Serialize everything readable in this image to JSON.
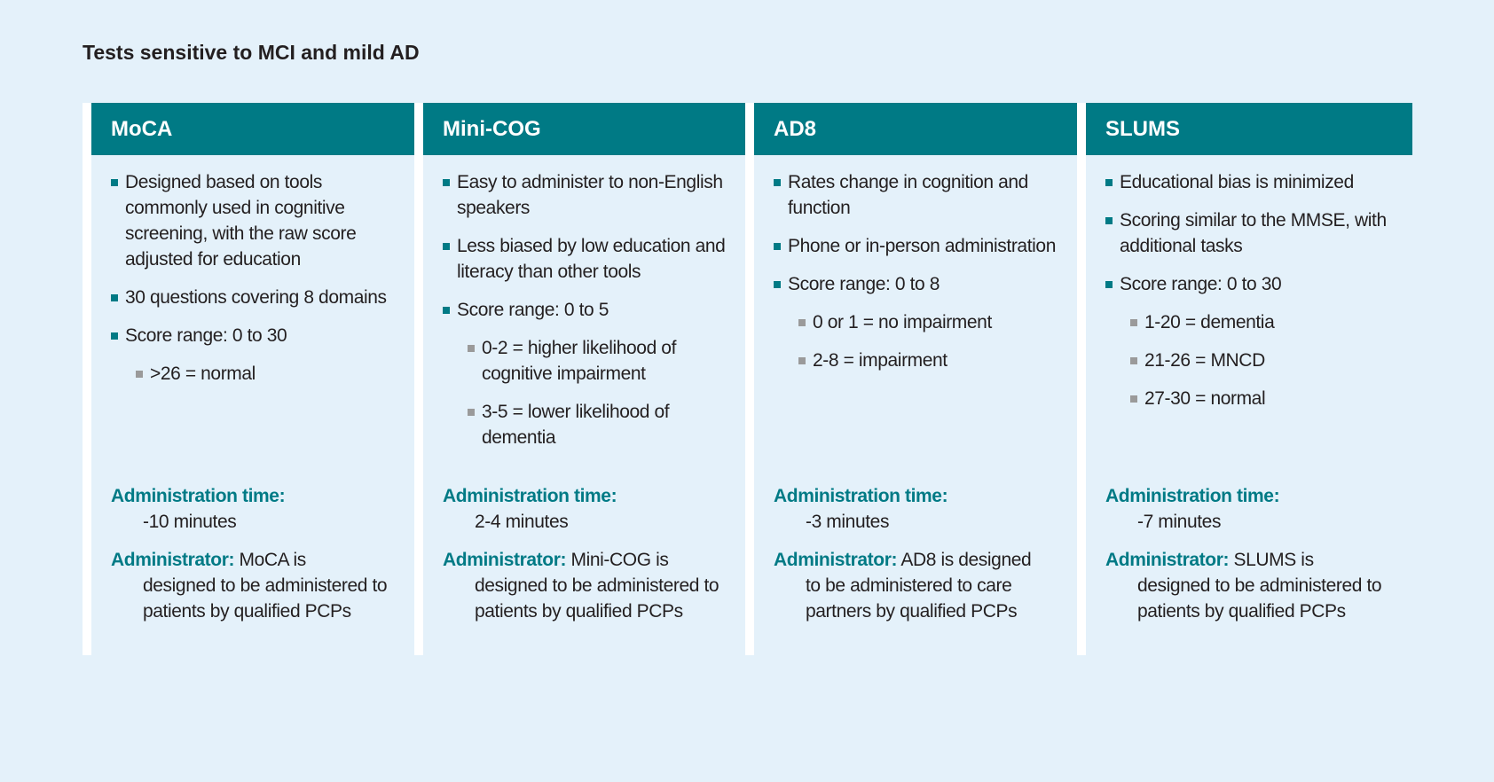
{
  "title": "Tests sensitive to MCI and mild AD",
  "labels": {
    "time": "Administration time:",
    "administrator": "Administrator:"
  },
  "columns": [
    {
      "name": "MoCA",
      "bullets": [
        {
          "text": "Designed based on tools commonly used in cognitive screening, with the raw score adjusted for education",
          "sub": false
        },
        {
          "text": "30 questions covering 8 domains",
          "sub": false
        },
        {
          "text": "Score range: 0 to 30",
          "sub": false
        },
        {
          "text": ">26 = normal",
          "sub": true
        }
      ],
      "time": "-10 minutes",
      "admin_first": "MoCA is",
      "admin_rest": "designed to be administered to patients by qualified PCPs"
    },
    {
      "name": "Mini-COG",
      "bullets": [
        {
          "text": "Easy to administer to non-English speakers",
          "sub": false
        },
        {
          "text": "Less biased by low education and literacy than other tools",
          "sub": false
        },
        {
          "text": "Score range: 0 to 5",
          "sub": false
        },
        {
          "text": "0-2 = higher likelihood of cognitive impairment",
          "sub": true
        },
        {
          "text": "3-5 = lower likelihood of dementia",
          "sub": true
        }
      ],
      "time": "2-4 minutes",
      "admin_first": "Mini-COG is",
      "admin_rest": "designed to be administered to patients by qualified PCPs"
    },
    {
      "name": "AD8",
      "bullets": [
        {
          "text": "Rates change in cognition and function",
          "sub": false
        },
        {
          "text": "Phone or in-person administration",
          "sub": false
        },
        {
          "text": "Score range: 0 to 8",
          "sub": false
        },
        {
          "text": "0 or 1 = no impairment",
          "sub": true
        },
        {
          "text": "2-8 = impairment",
          "sub": true
        }
      ],
      "time": "-3 minutes",
      "admin_first": "AD8 is designed",
      "admin_rest": "to be administered to care partners by qualified PCPs"
    },
    {
      "name": "SLUMS",
      "bullets": [
        {
          "text": "Educational bias is minimized",
          "sub": false
        },
        {
          "text": "Scoring similar to the MMSE, with additional tasks",
          "sub": false
        },
        {
          "text": "Score range: 0 to 30",
          "sub": false
        },
        {
          "text": "1-20 = dementia",
          "sub": true
        },
        {
          "text": "21-26 = MNCD",
          "sub": true
        },
        {
          "text": "27-30 = normal",
          "sub": true
        }
      ],
      "time": "-7 minutes",
      "admin_first": "SLUMS is",
      "admin_rest": "designed to be administered to patients by qualified PCPs"
    }
  ],
  "colors": {
    "teal": "#007a85",
    "background": "#e4f1fa",
    "sub_bullet": "#9a9a9a"
  }
}
